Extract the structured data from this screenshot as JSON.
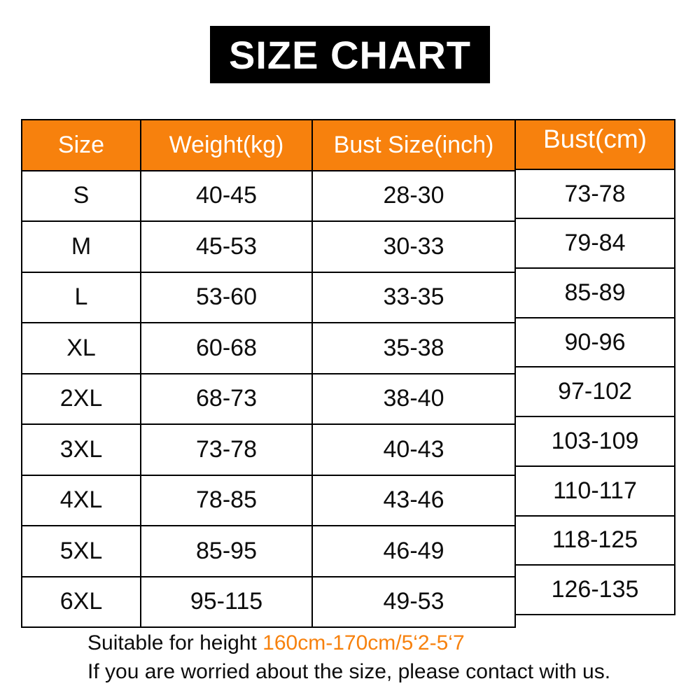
{
  "banner": {
    "title": "SIZE CHART"
  },
  "table": {
    "headers": [
      "Size",
      "Weight(kg)",
      "Bust Size(inch)",
      "Bust(cm)"
    ],
    "rows": [
      {
        "size": "S",
        "weight_kg": "40-45",
        "bust_inch": "28-30",
        "bust_cm": "73-78"
      },
      {
        "size": "M",
        "weight_kg": "45-53",
        "bust_inch": "30-33",
        "bust_cm": "79-84"
      },
      {
        "size": "L",
        "weight_kg": "53-60",
        "bust_inch": "33-35",
        "bust_cm": "85-89"
      },
      {
        "size": "XL",
        "weight_kg": "60-68",
        "bust_inch": "35-38",
        "bust_cm": "90-96"
      },
      {
        "size": "2XL",
        "weight_kg": "68-73",
        "bust_inch": "38-40",
        "bust_cm": "97-102"
      },
      {
        "size": "3XL",
        "weight_kg": "73-78",
        "bust_inch": "40-43",
        "bust_cm": "103-109"
      },
      {
        "size": "4XL",
        "weight_kg": "78-85",
        "bust_inch": "43-46",
        "bust_cm": "110-117"
      },
      {
        "size": "5XL",
        "weight_kg": "85-95",
        "bust_inch": "46-49",
        "bust_cm": "118-125"
      },
      {
        "size": "6XL",
        "weight_kg": "95-115",
        "bust_inch": "49-53",
        "bust_cm": "126-135"
      }
    ]
  },
  "footer": {
    "line1_prefix": "Suitable for height ",
    "line1_highlight": "160cm-170cm/5‘2-5‘7",
    "line2": "If you are worried about the size, please contact with us."
  },
  "colors": {
    "accent_orange": "#F7810D",
    "banner_background": "#000000",
    "text_black": "#0d0d0d"
  }
}
